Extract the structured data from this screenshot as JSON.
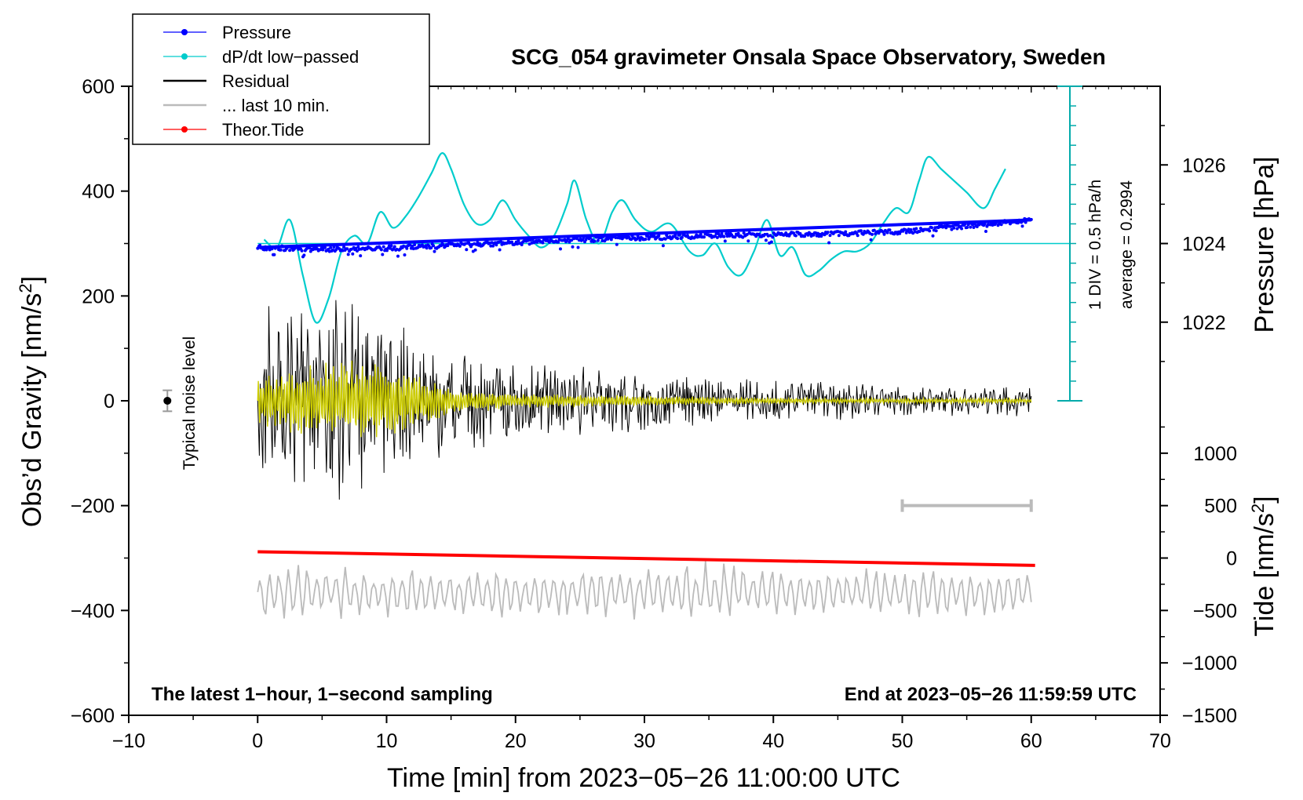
{
  "chart_data": {
    "type": "line",
    "title": "SCG_054 gravimeter Onsala Space Observatory, Sweden",
    "xlabel": "Time [min] from 2023−05−26 11:00:00 UTC",
    "ylabel_left_main": "Obs’d Gravity [nm/s",
    "ylabel_left_sup": "2",
    "ylabel_left_end": "]",
    "ylabel_right_pressure": "Pressure [hPa]",
    "ylabel_right_tide_main": "Tide [nm/s",
    "ylabel_right_tide_sup": "2",
    "ylabel_right_tide_end": "]",
    "xlim": [
      -10,
      70
    ],
    "ylim_left": [
      -600,
      600
    ],
    "pressure_range": [
      1020,
      1028
    ],
    "tide_range": [
      -1500,
      1500
    ],
    "x_ticks": [
      "−10",
      "0",
      "10",
      "20",
      "30",
      "40",
      "50",
      "60",
      "70"
    ],
    "x_tick_values": [
      -10,
      0,
      10,
      20,
      30,
      40,
      50,
      60,
      70
    ],
    "y_left_ticks": [
      "600",
      "400",
      "200",
      "0",
      "−200",
      "−400",
      "−600"
    ],
    "y_left_tick_values": [
      600,
      400,
      200,
      0,
      -200,
      -400,
      -600
    ],
    "pressure_ticks": [
      "1026",
      "1024",
      "1022"
    ],
    "pressure_tick_values": [
      1026,
      1024,
      1022
    ],
    "tide_ticks": [
      "1000",
      "500",
      "0",
      "−500",
      "−1000",
      "−1500"
    ],
    "tide_tick_values": [
      1000,
      500,
      0,
      -500,
      -1000,
      -1500
    ],
    "legend": [
      {
        "label": "Pressure",
        "color": "#0000ff",
        "marker": true
      },
      {
        "label": "dP/dt low−passed",
        "color": "#00cccc",
        "marker": true
      },
      {
        "label": "Residual",
        "color": "#000000",
        "marker": false
      },
      {
        "label": "... last 10 min.",
        "color": "#bbbbbb",
        "marker": false
      },
      {
        "label": "Theor.Tide",
        "color": "#ff0000",
        "marker": true
      }
    ],
    "annotations": {
      "noise_label": "Typical noise level",
      "dpdt_scale": "1 DIV = 0.5 hPa/h",
      "dpdt_average": "average = 0.2994",
      "bottom_left": "The latest 1−hour, 1−second sampling",
      "bottom_right": "End at 2023−05−26 11:59:59 UTC"
    },
    "noise_level": {
      "x": -7,
      "value": 0,
      "error": 20
    },
    "last10_range": [
      50,
      60
    ],
    "series": [
      {
        "name": "Pressure",
        "axis": "pressure",
        "color": "#0000ff",
        "x": [
          0,
          5,
          10,
          15,
          20,
          25,
          30,
          35,
          40,
          45,
          50,
          55,
          60
        ],
        "values": [
          1023.9,
          1023.85,
          1023.88,
          1023.95,
          1024.02,
          1024.1,
          1024.15,
          1024.2,
          1024.22,
          1024.25,
          1024.3,
          1024.45,
          1024.6
        ]
      },
      {
        "name": "dP/dt low−passed",
        "axis": "pressure",
        "color": "#00cccc",
        "x": [
          0.5,
          1.5,
          2.5,
          3.5,
          4.5,
          5.5,
          6.5,
          7.5,
          8.5,
          9.5,
          10.5,
          11.5,
          12.5,
          13.5,
          14.3,
          15,
          16,
          17,
          18,
          19,
          20,
          21,
          22,
          23,
          24,
          24.6,
          25.5,
          26.5,
          27.5,
          28.3,
          29.3,
          30.5,
          32,
          33.5,
          34.5,
          35.5,
          36.5,
          37.5,
          38.5,
          39.5,
          40.5,
          41.5,
          42.5,
          43.5,
          44.5,
          45.5,
          46.5,
          47.5,
          48.5,
          49.5,
          50.5,
          51.3,
          52,
          53,
          54,
          55,
          56.3,
          57.2,
          58
        ],
        "values": [
          1024.1,
          1023.9,
          1024.6,
          1023.2,
          1022.0,
          1022.6,
          1023.8,
          1024.2,
          1024.0,
          1024.8,
          1024.4,
          1024.7,
          1025.2,
          1025.8,
          1026.3,
          1025.9,
          1025.0,
          1024.5,
          1024.6,
          1025.1,
          1024.6,
          1024.2,
          1023.9,
          1024.2,
          1025.0,
          1025.6,
          1024.6,
          1024.0,
          1024.8,
          1025.1,
          1024.6,
          1024.3,
          1024.5,
          1023.8,
          1023.7,
          1024.0,
          1023.4,
          1023.2,
          1023.8,
          1024.6,
          1023.7,
          1023.9,
          1023.2,
          1023.3,
          1023.6,
          1023.8,
          1023.8,
          1024.0,
          1024.5,
          1024.9,
          1024.8,
          1025.6,
          1026.2,
          1025.9,
          1025.6,
          1025.3,
          1024.9,
          1025.4,
          1025.9
        ]
      },
      {
        "name": "Residual",
        "axis": "gravity",
        "color": "#000000",
        "x": [
          0,
          5,
          10,
          15,
          20,
          25,
          30,
          35,
          40,
          45,
          50,
          55,
          60
        ],
        "amplitude": [
          180,
          220,
          180,
          100,
          80,
          70,
          60,
          50,
          40,
          40,
          30,
          30,
          30
        ],
        "values": [
          0,
          0,
          0,
          0,
          0,
          0,
          0,
          0,
          0,
          0,
          0,
          0,
          0
        ]
      },
      {
        "name": "Residual low−passed",
        "axis": "gravity",
        "color": "#cccc00",
        "x": [
          0,
          5,
          10,
          15,
          20,
          25,
          30,
          35,
          40,
          45,
          50,
          55,
          60
        ],
        "amplitude": [
          50,
          75,
          80,
          25,
          15,
          12,
          10,
          8,
          6,
          5,
          5,
          5,
          5
        ],
        "values": [
          0,
          0,
          0,
          0,
          0,
          0,
          0,
          0,
          0,
          0,
          0,
          0,
          0
        ]
      },
      {
        "name": "Theor.Tide",
        "axis": "tide",
        "color": "#ff0000",
        "x": [
          0,
          60.3
        ],
        "values": [
          60,
          -70
        ]
      },
      {
        "name": "... last 10 min.",
        "axis": "gravity",
        "color": "#bbbbbb",
        "x": [
          0,
          60
        ],
        "center": -365,
        "amplitude": [
          25,
          60
        ]
      }
    ]
  }
}
